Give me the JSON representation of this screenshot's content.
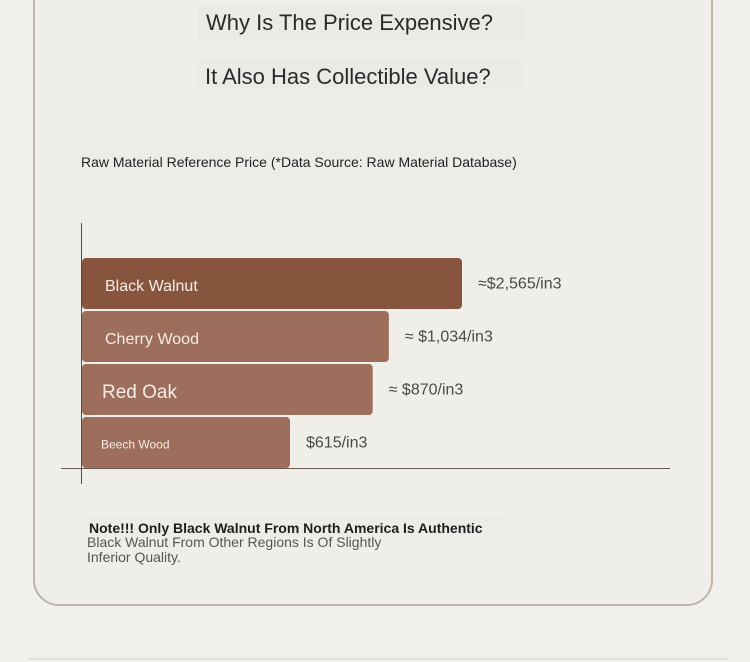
{
  "heading_1": "Why Is The Price Expensive?",
  "heading_2": "It Also Has Collectible Value?",
  "chart_data": {
    "type": "bar",
    "orientation": "horizontal",
    "title": "Raw Material Reference Price (*Data Source: Raw Material Database)",
    "categories": [
      "Black Walnut",
      "Cherry Wood",
      "Red Oak",
      "Beech Wood"
    ],
    "values": [
      2565,
      1034,
      870,
      615
    ],
    "value_labels": [
      "≈$2,565/in3",
      "≈ $1,034/in3",
      "≈ $870/in3",
      "$615/in3"
    ],
    "unit": "$/in3",
    "colors": [
      "#87553d",
      "#9d6e5c",
      "#9d6e5c",
      "#9d6e5c"
    ],
    "grid": false,
    "legend": "none"
  },
  "note": {
    "title": "Note!!! Only Black Walnut From North America Is Authentic",
    "text": "Black Walnut From Other Regions Is Of Slightly Inferior Quality."
  }
}
